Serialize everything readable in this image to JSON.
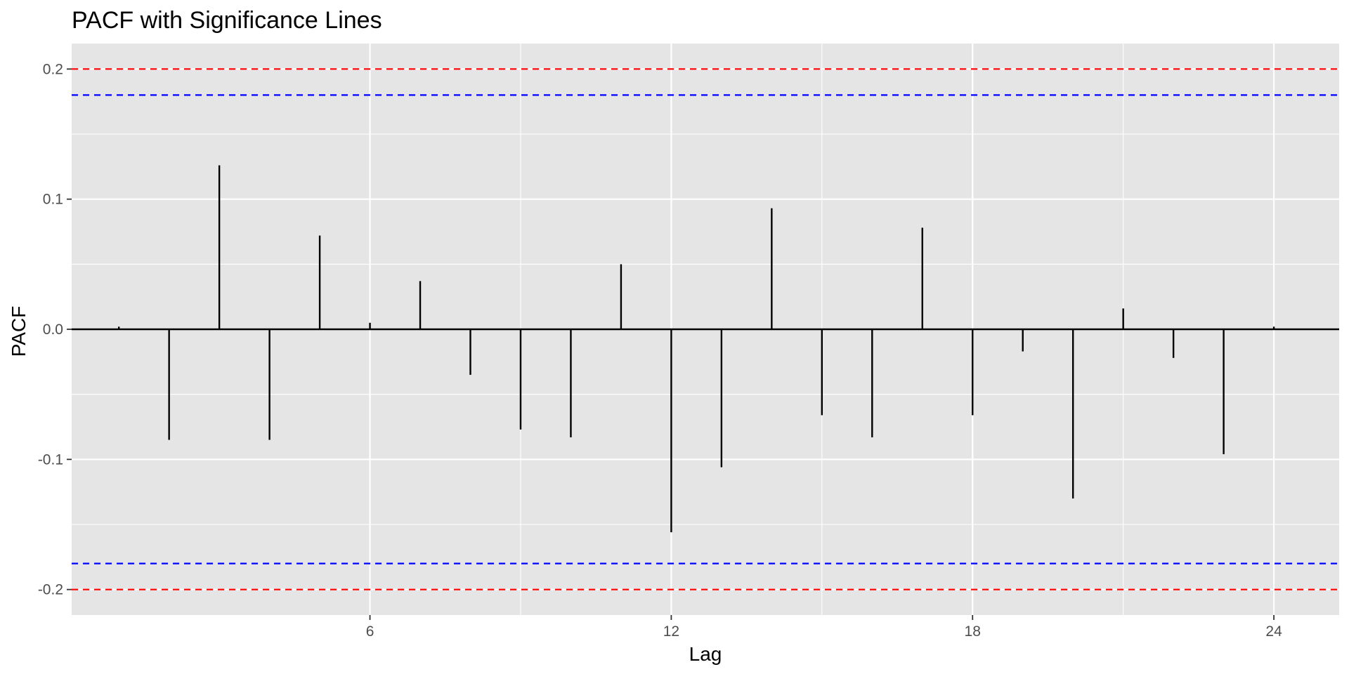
{
  "chart_data": {
    "type": "bar",
    "title": "PACF with Significance Lines",
    "xlabel": "Lag",
    "ylabel": "PACF",
    "xlim": [
      0.06,
      25.3
    ],
    "ylim": [
      -0.2196,
      0.2196
    ],
    "x_ticks": [
      6,
      12,
      18,
      24
    ],
    "y_ticks": [
      -0.2,
      -0.1,
      0.0,
      0.1,
      0.2
    ],
    "y_tick_labels": [
      "-0.2",
      "-0.1",
      "0.0",
      "0.1",
      "0.2"
    ],
    "grid": true,
    "background": "#e5e5e5",
    "grid_color": "#ffffff",
    "lag": [
      1,
      2,
      3,
      4,
      5,
      6,
      7,
      8,
      9,
      10,
      11,
      12,
      13,
      14,
      15,
      16,
      17,
      18,
      19,
      20,
      21,
      22,
      23,
      24
    ],
    "values": [
      0.002,
      -0.085,
      0.126,
      -0.085,
      0.072,
      0.005,
      0.037,
      -0.035,
      -0.077,
      -0.083,
      0.05,
      -0.156,
      -0.106,
      0.093,
      -0.066,
      -0.083,
      0.078,
      -0.066,
      -0.017,
      -0.13,
      0.016,
      -0.022,
      -0.096,
      0.002
    ],
    "bar_color": "#000000",
    "reference_lines": [
      {
        "value": 0.2,
        "color": "#ff0000",
        "style": "dashed"
      },
      {
        "value": 0.18,
        "color": "#0000ff",
        "style": "dashed"
      },
      {
        "value": -0.18,
        "color": "#0000ff",
        "style": "dashed"
      },
      {
        "value": -0.2,
        "color": "#ff0000",
        "style": "dashed"
      }
    ],
    "zero_line": true
  }
}
